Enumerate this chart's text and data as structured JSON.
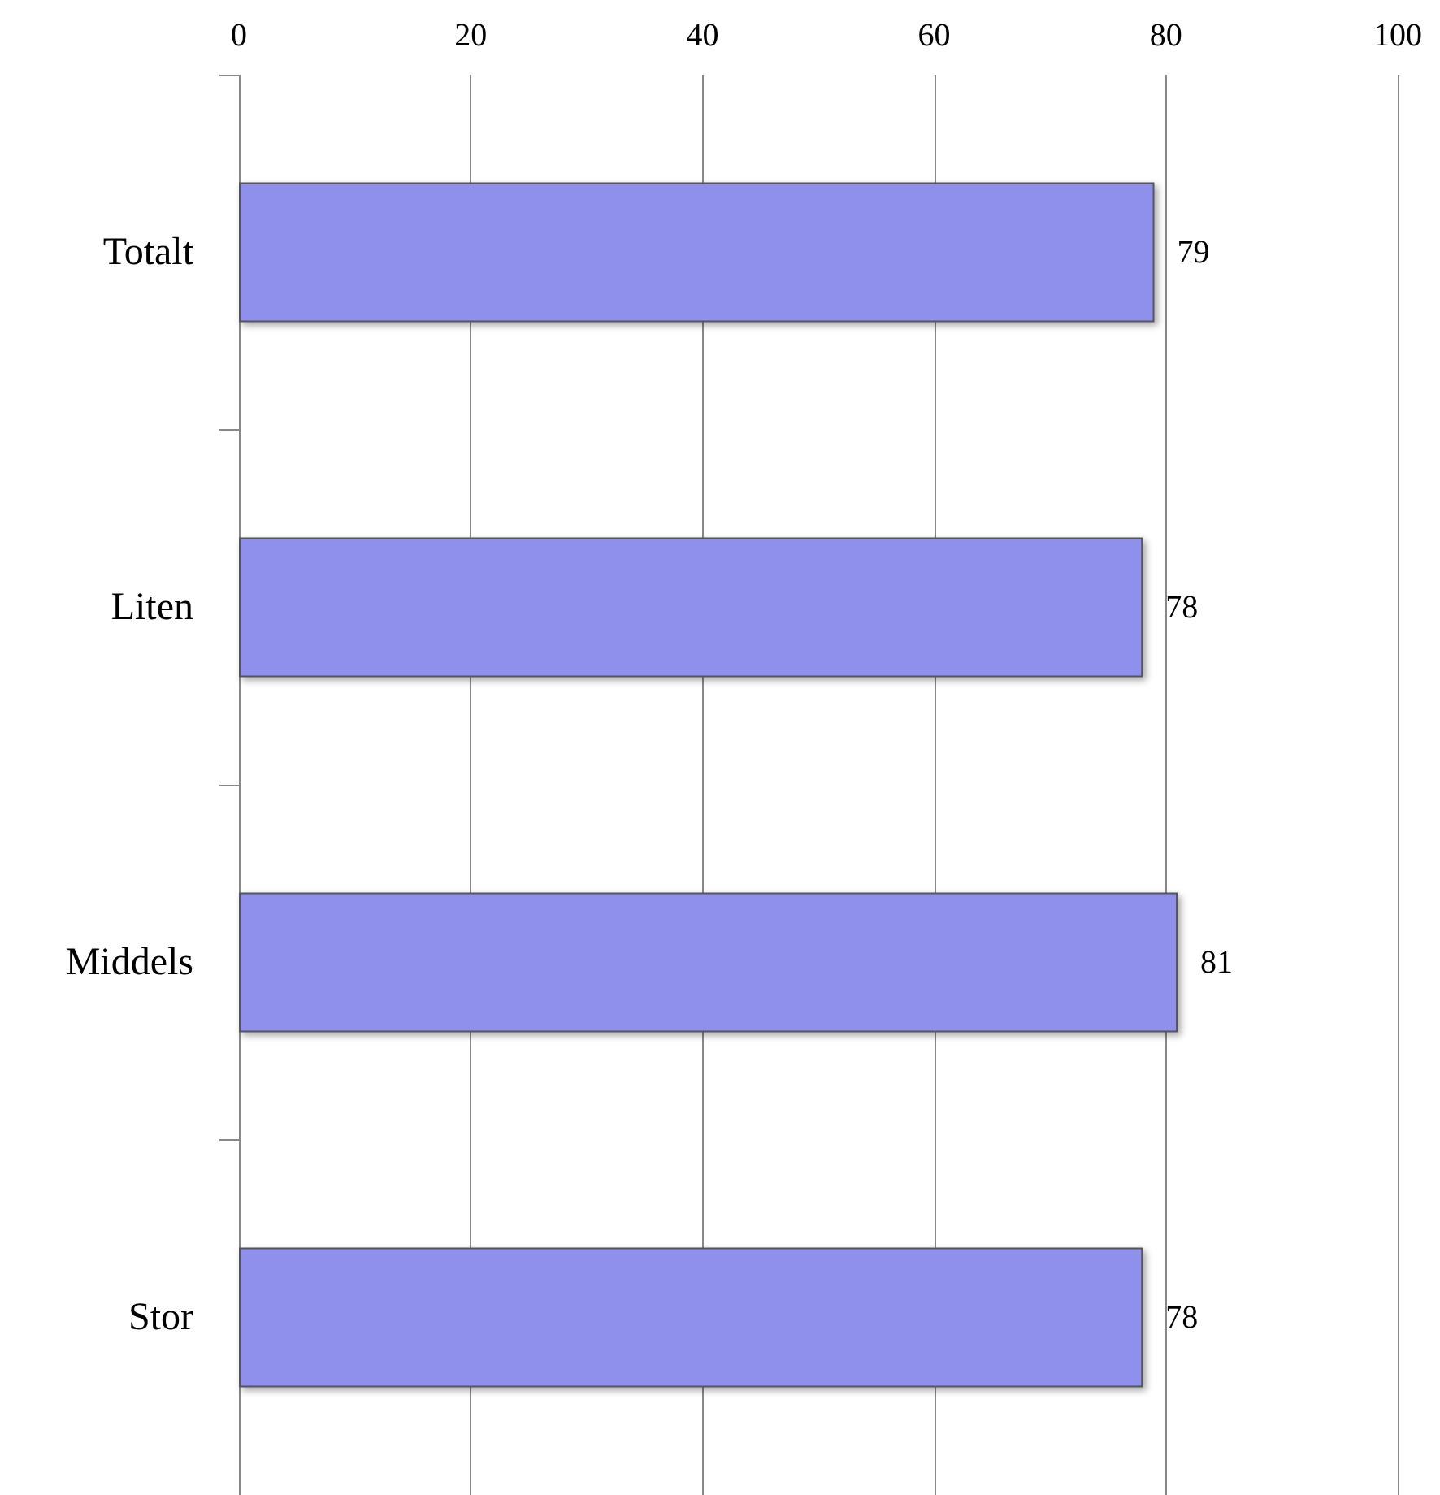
{
  "chart_data": {
    "type": "bar",
    "orientation": "horizontal",
    "categories": [
      "Totalt",
      "Liten",
      "Middels",
      "Stor"
    ],
    "values": [
      79,
      78,
      81,
      78
    ],
    "color": "#8f90ec",
    "xlim": [
      0,
      100
    ],
    "xticks": [
      0,
      20,
      40,
      60,
      80,
      100
    ],
    "grid": "x",
    "data_labels": true
  }
}
